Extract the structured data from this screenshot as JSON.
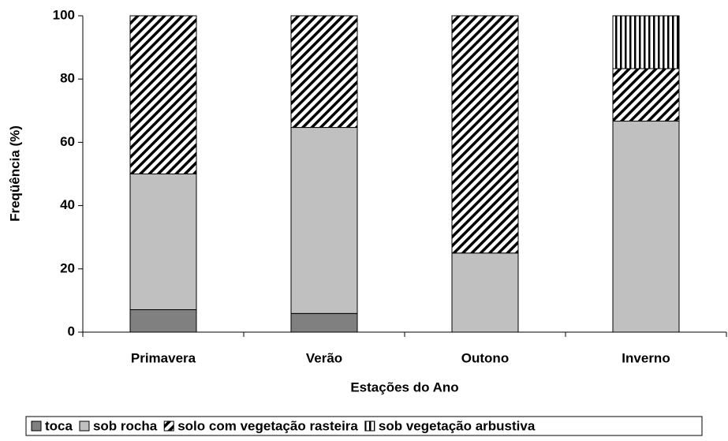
{
  "chart_data": {
    "type": "stacked_bar",
    "y_label": "Freqüência (%)",
    "x_label": "Estações do Ano",
    "categories": [
      "Primavera",
      "Verão",
      "Outono",
      "Inverno"
    ],
    "series": [
      {
        "name": "toca",
        "color": "#808080",
        "values": [
          7.1,
          5.9,
          0,
          0
        ]
      },
      {
        "name": "sob rocha",
        "color": "#c0c0c0",
        "values": [
          42.9,
          58.8,
          25,
          66.7
        ]
      },
      {
        "name": "solo com vegetação rasteira",
        "color": "#ffffff",
        "pattern": "diagonal",
        "values": [
          50,
          35.3,
          75,
          16.6
        ]
      },
      {
        "name": "sob vegetação arbustiva",
        "color": "#ffffff",
        "pattern": "vertical",
        "values": [
          0,
          0,
          0,
          16.7
        ]
      }
    ],
    "ylim": [
      0,
      100
    ],
    "yticks": [
      0,
      20,
      40,
      60,
      80,
      100
    ],
    "legend": "bottom"
  }
}
